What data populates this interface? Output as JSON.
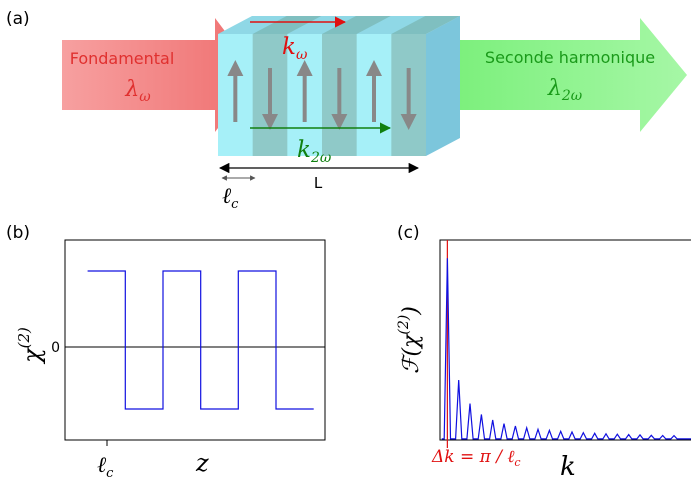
{
  "panel_a": {
    "label": "(a)",
    "input": {
      "title": "Fondamental",
      "symbol": "λ",
      "sub": "ω",
      "color": "#e0302f"
    },
    "output": {
      "title": "Seconde harmonique",
      "symbol": "λ",
      "sub": "2ω",
      "color": "#1a9a1a"
    },
    "k_fundamental": {
      "symbol": "k",
      "sub": "ω",
      "color": "#e01010"
    },
    "k_harmonic": {
      "symbol": "k",
      "sub": "2ω",
      "color": "#108010"
    },
    "length_label": "L",
    "period_label": {
      "symbol": "ℓ",
      "sub": "c"
    },
    "domain_polarity": [
      "up",
      "down",
      "up",
      "down",
      "up",
      "down"
    ]
  },
  "panel_b": {
    "label": "(b)",
    "ylabel": {
      "symbol": "χ",
      "sup": "(2)"
    },
    "zero_tick": "0",
    "x_tick": {
      "symbol": "ℓ",
      "sub": "c"
    },
    "xlabel": "z",
    "chart_data": {
      "type": "line",
      "signal": "square wave",
      "x": [
        0,
        1,
        1,
        2,
        2,
        3,
        3,
        4,
        4,
        5,
        5,
        6
      ],
      "y": [
        1,
        1,
        -1,
        -1,
        1,
        1,
        -1,
        -1,
        1,
        1,
        -1,
        -1
      ],
      "xlim": [
        -0.6,
        6.3
      ],
      "ylim": [
        -1.45,
        1.45
      ]
    }
  },
  "panel_c": {
    "label": "(c)",
    "ylabel": {
      "prefix": "ℱ(χ",
      "sup": "(2)",
      "suffix": ")"
    },
    "annotation": {
      "text": "Δk = π / ℓ",
      "sub": "c",
      "color": "#e01010"
    },
    "xlabel": "k",
    "chart_data": {
      "type": "line",
      "signal": "Fourier spectrum",
      "peaks_x": [
        1,
        3,
        5,
        7,
        9,
        11,
        13,
        15,
        17,
        19,
        21,
        23,
        25,
        27,
        29,
        31,
        33,
        35,
        37,
        39,
        41
      ],
      "peaks_y": [
        1.0,
        0.33,
        0.2,
        0.14,
        0.11,
        0.09,
        0.077,
        0.067,
        0.059,
        0.053,
        0.048,
        0.044,
        0.04,
        0.037,
        0.034,
        0.032,
        0.03,
        0.028,
        0.026,
        0.025,
        0.024
      ],
      "marker_x": 1,
      "xlim": [
        -0.3,
        44
      ],
      "ylim": [
        0,
        1.1
      ]
    }
  }
}
